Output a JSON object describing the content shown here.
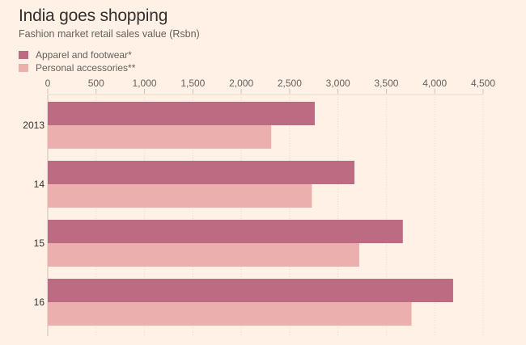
{
  "chart_data": {
    "type": "bar",
    "orientation": "horizontal",
    "title": "India goes shopping",
    "subtitle": "Fashion market retail sales value (Rsbn)",
    "categories": [
      "2013",
      "14",
      "15",
      "16"
    ],
    "series": [
      {
        "name": "Apparel and footwear*",
        "color": "#bd6b82",
        "values": [
          2760,
          3170,
          3670,
          4190
        ]
      },
      {
        "name": "Personal accessories**",
        "color": "#ebafae",
        "values": [
          2310,
          2730,
          3220,
          3760
        ]
      }
    ],
    "xlim": [
      0,
      4500
    ],
    "xticks": [
      "0",
      "500",
      "1,000",
      "1,500",
      "2,000",
      "2,500",
      "3,000",
      "3,500",
      "4,000",
      "4,500"
    ],
    "grid": true,
    "legend_position": "top-left"
  }
}
